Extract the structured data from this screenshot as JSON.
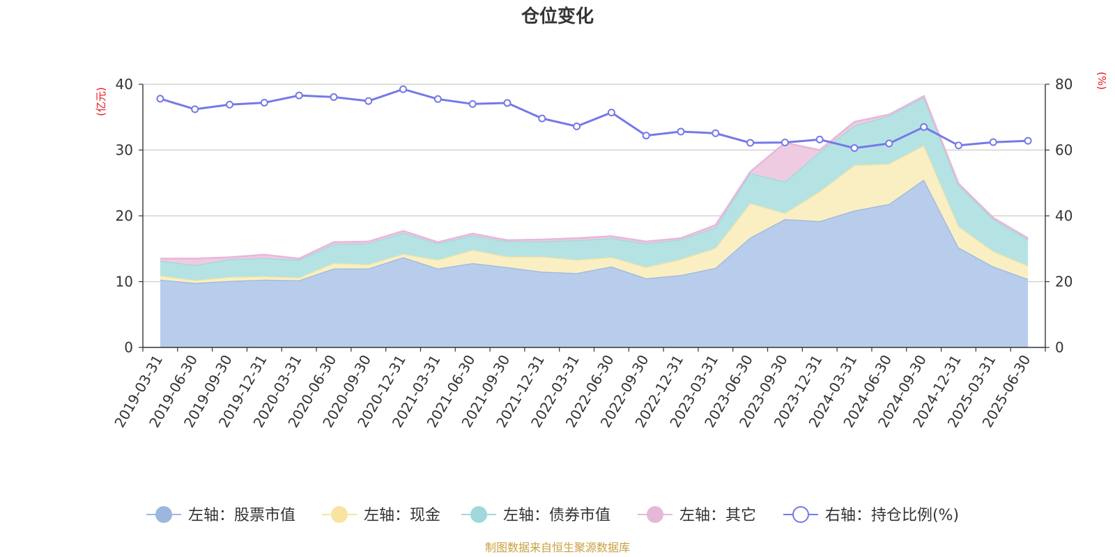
{
  "chart_data": {
    "type": "area",
    "title": "仓位变化",
    "left_unit": "(亿元)",
    "right_unit": "(%)",
    "x": [
      "2019-03-31",
      "2019-06-30",
      "2019-09-30",
      "2019-12-31",
      "2020-03-31",
      "2020-06-30",
      "2020-09-30",
      "2020-12-31",
      "2021-03-31",
      "2021-06-30",
      "2021-09-30",
      "2021-12-31",
      "2022-03-31",
      "2022-06-30",
      "2022-09-30",
      "2022-12-31",
      "2023-03-31",
      "2023-06-30",
      "2023-09-30",
      "2023-12-31",
      "2024-03-31",
      "2024-06-30",
      "2024-09-30",
      "2024-12-31",
      "2025-03-31",
      "2025-06-30"
    ],
    "y_left": {
      "min": 0,
      "max": 40,
      "ticks": [
        0,
        10,
        20,
        30,
        40
      ]
    },
    "y_right": {
      "min": 0,
      "max": 80,
      "ticks": [
        0,
        20,
        40,
        60,
        80
      ]
    },
    "series": [
      {
        "name": "左轴：股票市值",
        "axis": "left",
        "type": "stacked-area",
        "color": "#9bb7e0",
        "fill": "#b8cdeb",
        "values": [
          10.3,
          9.8,
          10.1,
          10.3,
          10.2,
          12.0,
          12.0,
          13.7,
          12.0,
          12.8,
          12.2,
          11.5,
          11.3,
          12.3,
          10.5,
          11.0,
          12.1,
          16.7,
          19.5,
          19.2,
          20.8,
          21.8,
          25.5,
          15.2,
          12.3,
          10.4
        ]
      },
      {
        "name": "左轴：现金",
        "axis": "left",
        "type": "stacked-area",
        "color": "#f7e4a0",
        "fill": "#faeec3",
        "values": [
          0.6,
          0.4,
          0.6,
          0.5,
          0.4,
          0.8,
          0.6,
          0.5,
          1.3,
          2.0,
          1.6,
          2.3,
          2.0,
          1.4,
          1.7,
          2.4,
          3.0,
          5.2,
          0.9,
          4.5,
          6.9,
          6.1,
          5.2,
          3.2,
          2.3,
          2.0
        ]
      },
      {
        "name": "左轴：债券市值",
        "axis": "left",
        "type": "stacked-area",
        "color": "#a0d8dc",
        "fill": "#b5e3e3",
        "values": [
          2.3,
          2.3,
          2.7,
          2.8,
          2.7,
          2.9,
          3.2,
          3.2,
          2.5,
          2.2,
          2.3,
          2.3,
          3.0,
          2.9,
          3.6,
          3.0,
          3.1,
          4.6,
          4.8,
          6.0,
          6.0,
          7.3,
          7.3,
          6.3,
          4.9,
          4.0
        ]
      },
      {
        "name": "左轴：其它",
        "axis": "left",
        "type": "stacked-area",
        "color": "#e6b8d8",
        "fill": "#efcbe1",
        "values": [
          0.3,
          1.0,
          0.3,
          0.5,
          0.2,
          0.3,
          0.3,
          0.3,
          0.2,
          0.3,
          0.2,
          0.3,
          0.3,
          0.3,
          0.3,
          0.2,
          0.4,
          0.2,
          5.9,
          0.3,
          0.6,
          0.2,
          0.2,
          0.2,
          0.2,
          0.2
        ]
      },
      {
        "name": "右轴：持仓比例(%)",
        "axis": "right",
        "type": "line",
        "color": "#7479e8",
        "values": [
          75.6,
          72.4,
          73.8,
          74.4,
          76.6,
          76.1,
          74.9,
          78.5,
          75.5,
          74.0,
          74.3,
          69.6,
          67.2,
          71.4,
          64.4,
          65.6,
          65.1,
          62.2,
          62.3,
          63.2,
          60.6,
          62.0,
          67.0,
          61.4,
          62.4,
          62.8
        ]
      }
    ],
    "legend_position": "bottom-center",
    "grid": true
  },
  "source_note": "制图数据来自恒生聚源数据库"
}
